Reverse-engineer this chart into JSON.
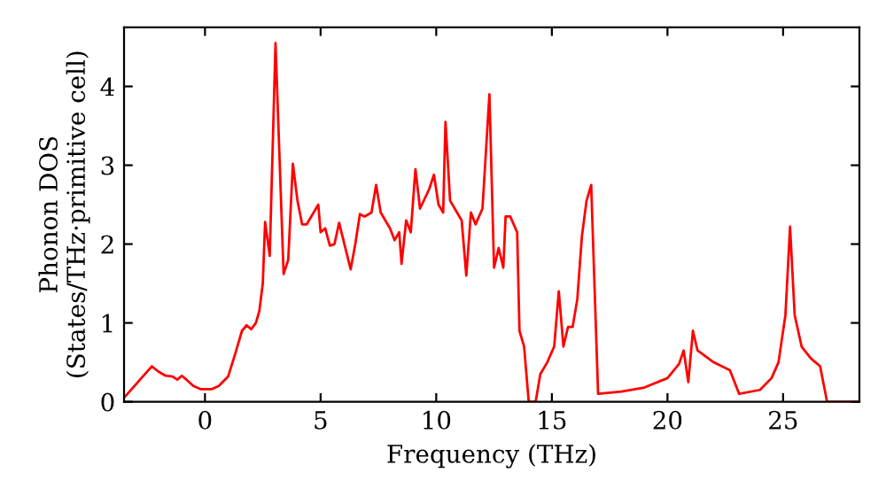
{
  "chart_data": {
    "type": "line",
    "xlabel": "Frequency (THz)",
    "ylabel": "Phonon DOS\n(States/THz·primitive cell)",
    "xlim": [
      -3.5,
      28.3
    ],
    "ylim": [
      0,
      4.75
    ],
    "xticks": [
      0,
      5,
      10,
      15,
      20,
      25
    ],
    "yticks": [
      0,
      1,
      2,
      3,
      4
    ],
    "grid": false,
    "legend": false,
    "series": [
      {
        "color": "#ff0000",
        "x": [
          -3.5,
          -2.3,
          -2,
          -1.7,
          -1.4,
          -1.2,
          -1,
          -0.8,
          -0.5,
          -0.2,
          0.3,
          0.6,
          1,
          1.3,
          1.6,
          1.8,
          2.0,
          2.2,
          2.35,
          2.5,
          2.6,
          2.8,
          3.05,
          3.4,
          3.6,
          3.8,
          4.0,
          4.2,
          4.4,
          4.9,
          5.0,
          5.2,
          5.4,
          5.6,
          5.8,
          6.3,
          6.5,
          6.7,
          6.9,
          7.2,
          7.4,
          7.6,
          8.0,
          8.2,
          8.4,
          8.5,
          8.7,
          8.9,
          9.1,
          9.3,
          9.7,
          9.9,
          10.1,
          10.3,
          10.4,
          10.6,
          10.9,
          11.1,
          11.3,
          11.5,
          11.7,
          12.0,
          12.3,
          12.5,
          12.7,
          12.9,
          13.0,
          13.2,
          13.5,
          13.6,
          13.8,
          14.0,
          14.3,
          14.5,
          14.8,
          15.1,
          15.3,
          15.5,
          15.7,
          15.9,
          16.1,
          16.3,
          16.5,
          16.7,
          17.0,
          18,
          19,
          20,
          20.5,
          20.7,
          20.9,
          21.1,
          21.3,
          22,
          22.7,
          23.1,
          24.0,
          24.5,
          24.8,
          25.1,
          25.3,
          25.5,
          25.8,
          26.2,
          26.6,
          26.9,
          28.3
        ],
        "values": [
          0.05,
          0.45,
          0.38,
          0.33,
          0.32,
          0.28,
          0.33,
          0.28,
          0.2,
          0.16,
          0.16,
          0.2,
          0.32,
          0.6,
          0.9,
          0.97,
          0.92,
          1.0,
          1.15,
          1.5,
          2.28,
          1.85,
          4.55,
          1.62,
          1.8,
          3.02,
          2.55,
          2.25,
          2.25,
          2.5,
          2.15,
          2.2,
          1.98,
          2.0,
          2.27,
          1.68,
          2.0,
          2.38,
          2.35,
          2.4,
          2.75,
          2.4,
          2.2,
          2.05,
          2.15,
          1.75,
          2.3,
          2.15,
          2.95,
          2.45,
          2.7,
          2.88,
          2.5,
          2.4,
          3.55,
          2.55,
          2.4,
          2.3,
          1.6,
          2.4,
          2.25,
          2.45,
          3.9,
          1.7,
          1.95,
          1.7,
          2.35,
          2.35,
          2.15,
          0.9,
          0.7,
          0,
          0,
          0.35,
          0.5,
          0.7,
          1.4,
          0.7,
          0.95,
          0.95,
          1.3,
          2.1,
          2.55,
          2.75,
          0.1,
          0.13,
          0.18,
          0.3,
          0.48,
          0.65,
          0.25,
          0.9,
          0.65,
          0.5,
          0.4,
          0.1,
          0.15,
          0.3,
          0.5,
          1.1,
          2.22,
          1.1,
          0.7,
          0.55,
          0.45,
          0.0,
          0.0
        ]
      }
    ]
  }
}
